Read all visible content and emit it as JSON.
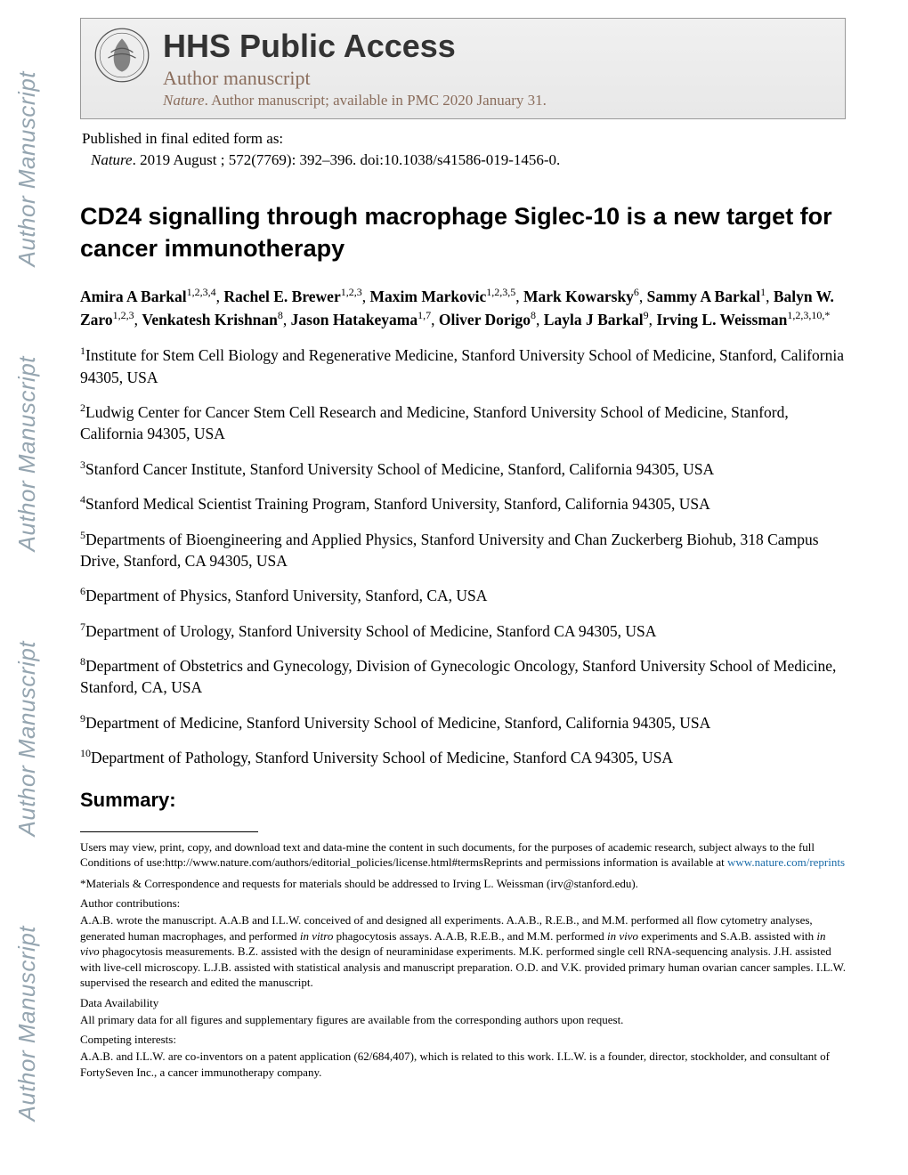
{
  "watermark_text": "Author Manuscript",
  "header": {
    "title": "HHS Public Access",
    "subtitle": "Author manuscript",
    "journal_italic": "Nature",
    "journal_rest": ". Author manuscript; available in PMC 2020 January 31."
  },
  "pub_info": "Published in final edited form as:",
  "citation": {
    "journal": "Nature",
    "rest": ". 2019 August ; 572(7769): 392–396. doi:10.1038/s41586-019-1456-0."
  },
  "article_title": "CD24 signalling through macrophage Siglec-10 is a new target for cancer immunotherapy",
  "authors_html": "Amira A Barkal|1,2,3,4|, |Rachel E. Brewer|1,2,3|, |Maxim Markovic|1,2,3,5|, |Mark Kowarsky|6|, |Sammy A Barkal|1|, |Balyn W. Zaro|1,2,3|, |Venkatesh Krishnan|8|, |Jason Hatakeyama|1,7|, |Oliver Dorigo|8|, |Layla J Barkal|9|, |Irving L. Weissman|1,2,3,10,*",
  "affiliations": [
    {
      "num": "1",
      "text": "Institute for Stem Cell Biology and Regenerative Medicine, Stanford University School of Medicine, Stanford, California 94305, USA"
    },
    {
      "num": "2",
      "text": "Ludwig Center for Cancer Stem Cell Research and Medicine, Stanford University School of Medicine, Stanford, California 94305, USA"
    },
    {
      "num": "3",
      "text": "Stanford Cancer Institute, Stanford University School of Medicine, Stanford, California 94305, USA"
    },
    {
      "num": "4",
      "text": "Stanford Medical Scientist Training Program, Stanford University, Stanford, California 94305, USA"
    },
    {
      "num": "5",
      "text": "Departments of Bioengineering and Applied Physics, Stanford University and Chan Zuckerberg Biohub, 318 Campus Drive, Stanford, CA 94305, USA"
    },
    {
      "num": "6",
      "text": "Department of Physics, Stanford University, Stanford, CA, USA"
    },
    {
      "num": "7",
      "text": "Department of Urology, Stanford University School of Medicine, Stanford CA 94305, USA"
    },
    {
      "num": "8",
      "text": "Department of Obstetrics and Gynecology, Division of Gynecologic Oncology, Stanford University School of Medicine, Stanford, CA, USA"
    },
    {
      "num": "9",
      "text": "Department of Medicine, Stanford University School of Medicine, Stanford, California 94305, USA"
    },
    {
      "num": "10",
      "text": "Department of Pathology, Stanford University School of Medicine, Stanford CA 94305, USA"
    }
  ],
  "summary_heading": "Summary:",
  "footnotes": {
    "users": "Users may view, print, copy, and download text and data-mine the content in such documents, for the purposes of academic research, subject always to the full Conditions of use:http://www.nature.com/authors/editorial_policies/license.html#termsReprints and permissions information is available at ",
    "users_link": "www.nature.com/reprints",
    "correspondence": "*Materials & Correspondence and requests for materials should be addressed to Irving L. Weissman (irv@stanford.edu).",
    "author_contrib_label": "Author contributions:",
    "author_contrib": "A.A.B. wrote the manuscript. A.A.B and I.L.W. conceived of and designed all experiments. A.A.B., R.E.B., and M.M. performed all flow cytometry analyses, generated human macrophages, and performed in vitro phagocytosis assays. A.A.B, R.E.B., and M.M. performed in vivo experiments and S.A.B. assisted with in vivo phagocytosis measurements. B.Z. assisted with the design of neuraminidase experiments. M.K. performed single cell RNA-sequencing analysis. J.H. assisted with live-cell microscopy. L.J.B. assisted with statistical analysis and manuscript preparation. O.D. and V.K. provided primary human ovarian cancer samples. I.L.W. supervised the research and edited the manuscript.",
    "data_label": "Data Availability",
    "data_text": "All primary data for all figures and supplementary figures are available from the corresponding authors upon request.",
    "competing_label": "Competing interests:",
    "competing_text": "A.A.B. and I.L.W. are co-inventors on a patent application (62/684,407), which is related to this work. I.L.W. is a founder, director, stockholder, and consultant of FortySeven Inc., a cancer immunotherapy company."
  },
  "colors": {
    "watermark": "#95a5b0",
    "subtitle": "#8a6d5c",
    "link": "#1a6ba8"
  }
}
